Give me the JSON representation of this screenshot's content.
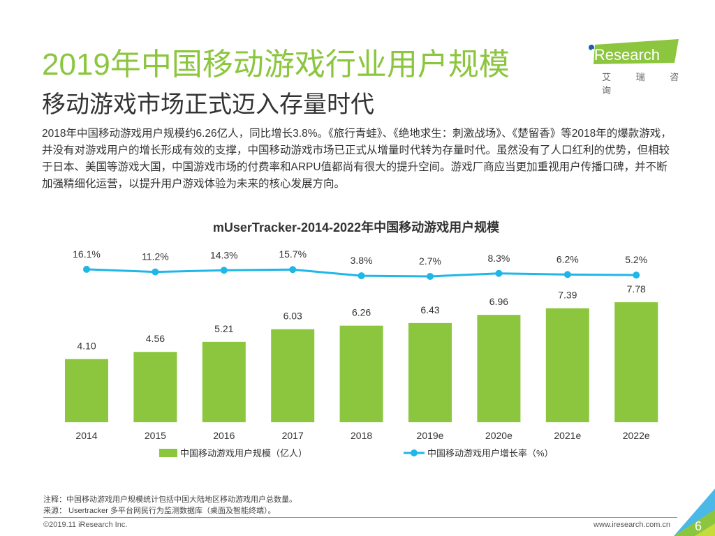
{
  "header": {
    "title": "2019年中国移动游戏行业用户规模",
    "subtitle": "移动游戏市场正式迈入存量时代",
    "logo_text": "iResearch",
    "logo_cn": "艾 瑞 咨 询"
  },
  "body_text": "2018年中国移动游戏用户规模约6.26亿人，同比增长3.8%。《旅行青蛙》、《绝地求生：刺激战场》、《楚留香》等2018年的爆款游戏，并没有对游戏用户的增长形成有效的支撑，中国移动游戏市场已正式从增量时代转为存量时代。虽然没有了人口红利的优势，但相较于日本、美国等游戏大国，中国游戏市场的付费率和ARPU值都尚有很大的提升空间。游戏厂商应当更加重视用户传播口碑，并不断加强精细化运营，以提升用户游戏体验为未来的核心发展方向。",
  "chart_data": {
    "type": "bar+line",
    "title": "mUserTracker-2014-2022年中国移动游戏用户规模",
    "categories": [
      "2014",
      "2015",
      "2016",
      "2017",
      "2018",
      "2019e",
      "2020e",
      "2021e",
      "2022e"
    ],
    "series": [
      {
        "name": "中国移动游戏用户规模（亿人）",
        "type": "bar",
        "color": "#8cc63f",
        "values": [
          4.1,
          4.56,
          5.21,
          6.03,
          6.26,
          6.43,
          6.96,
          7.39,
          7.78
        ],
        "labels": [
          "4.10",
          "4.56",
          "5.21",
          "6.03",
          "6.26",
          "6.43",
          "6.96",
          "7.39",
          "7.78"
        ]
      },
      {
        "name": "中国移动游戏用户增长率（%）",
        "type": "line",
        "color": "#1fb6e8",
        "values": [
          16.1,
          11.2,
          14.3,
          15.7,
          3.8,
          2.7,
          8.3,
          6.2,
          5.2
        ],
        "labels": [
          "16.1%",
          "11.2%",
          "14.3%",
          "15.7%",
          "3.8%",
          "2.7%",
          "8.3%",
          "6.2%",
          "5.2%"
        ]
      }
    ],
    "grid": false,
    "legend": "bottom"
  },
  "footer": {
    "note": "注释：中国移动游戏用户规模统计包括中国大陆地区移动游戏用户总数量。",
    "source": "来源： Usertracker 多平台网民行为监测数据库（桌面及智能终端）。",
    "copyright": "©2019.11 iResearch Inc.",
    "site": "www.iresearch.com.cn",
    "page": "6"
  }
}
